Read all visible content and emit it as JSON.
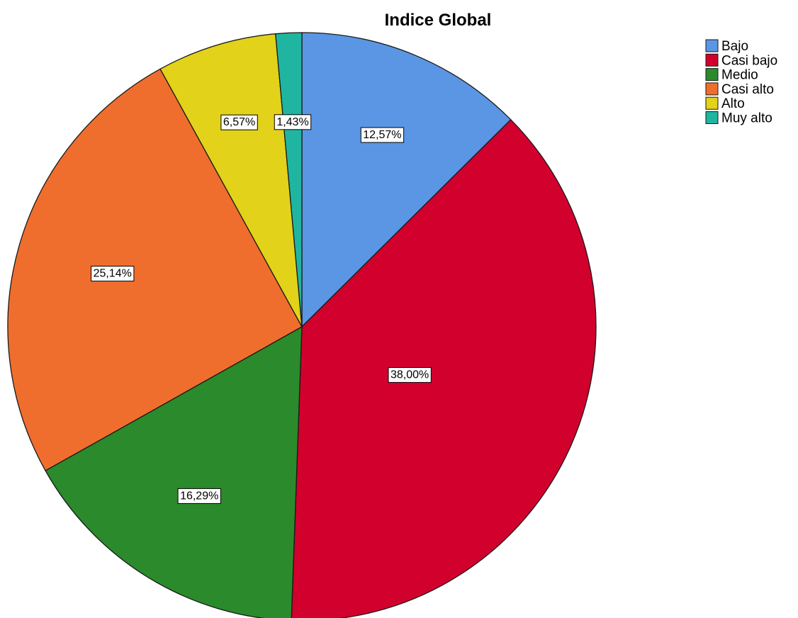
{
  "chart_data": {
    "type": "pie",
    "title": "Indice Global",
    "categories": [
      "Bajo",
      "Casi bajo",
      "Medio",
      "Casi alto",
      "Alto",
      "Muy alto"
    ],
    "values": [
      12.57,
      38.0,
      16.29,
      25.14,
      6.57,
      1.43
    ],
    "data_labels": [
      "12,57%",
      "38,00%",
      "16,29%",
      "25,14%",
      "6,57%",
      "1,43%"
    ],
    "colors": [
      "#5a96e3",
      "#d2002d",
      "#2b8a2b",
      "#f06e2d",
      "#e2d219",
      "#1fb5a1"
    ],
    "start_angle": "top",
    "direction": "clockwise",
    "legend_position": "top-right"
  }
}
